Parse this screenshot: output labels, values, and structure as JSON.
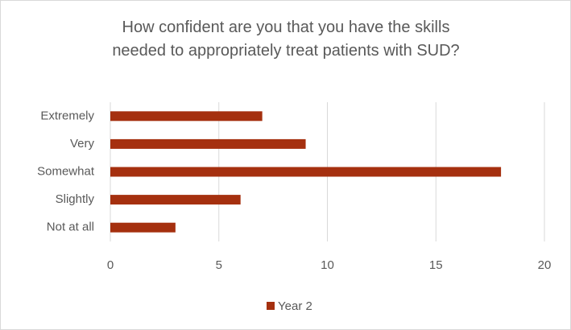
{
  "chart_data": {
    "type": "bar",
    "orientation": "horizontal",
    "title": "How confident are you that you have the skills needed to appropriately treat patients with SUD?",
    "categories": [
      "Extremely",
      "Very",
      "Somewhat",
      "Slightly",
      "Not at all"
    ],
    "series": [
      {
        "name": "Year 2",
        "color": "#a5300f",
        "values": [
          7,
          9,
          18,
          6,
          3
        ]
      }
    ],
    "xlim": [
      0,
      20
    ],
    "xticks": [
      0,
      5,
      10,
      15,
      20
    ],
    "grid": true,
    "legend": "bottom"
  }
}
